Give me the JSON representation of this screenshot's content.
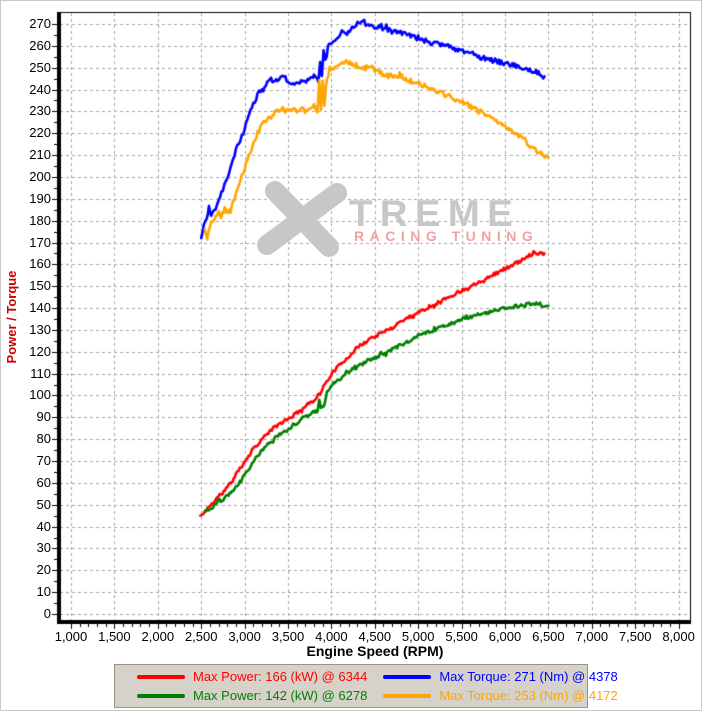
{
  "watermark": {
    "word_main": "TREME",
    "word_sub": "RACING TUNING",
    "main_color": "#c7c7c7",
    "sub_color": "#f2a2a2"
  },
  "axes": {
    "x": {
      "title": "Engine Speed (RPM)",
      "min": 1000,
      "max": 8000,
      "major_step": 500,
      "minor_step": 100,
      "tick_labels": [
        "1,000",
        "1,500",
        "2,000",
        "2,500",
        "3,000",
        "3,500",
        "4,000",
        "4,500",
        "5,000",
        "5,500",
        "6,000",
        "6,500",
        "7,000",
        "7,500",
        "8,000"
      ]
    },
    "y": {
      "title": "Power / Torque",
      "title_color": "#cc0000",
      "min": 0,
      "max": 270,
      "major_step": 10,
      "minor_step": 5,
      "tick_labels": [
        "0",
        "10",
        "20",
        "30",
        "40",
        "50",
        "60",
        "70",
        "80",
        "90",
        "100",
        "110",
        "120",
        "130",
        "140",
        "150",
        "160",
        "170",
        "180",
        "190",
        "200",
        "210",
        "220",
        "230",
        "240",
        "250",
        "260",
        "270"
      ]
    }
  },
  "chart_data": {
    "type": "line",
    "title": "",
    "xlabel": "Engine Speed (RPM)",
    "ylabel": "Power / Torque",
    "xlim": [
      1000,
      8000
    ],
    "ylim": [
      0,
      275
    ],
    "grid": true,
    "grid_color": "#a6a6a6",
    "legend_position": "bottom",
    "series": [
      {
        "name": "Max Power: 166 (kW) @ 6344",
        "color": "#ff0000",
        "unit": "kW",
        "max_value": 166,
        "max_rpm": 6344,
        "points": [
          [
            2490,
            45
          ],
          [
            2540,
            46
          ],
          [
            2560,
            48
          ],
          [
            2640,
            51
          ],
          [
            2700,
            54
          ],
          [
            2760,
            56
          ],
          [
            2800,
            58
          ],
          [
            2860,
            61
          ],
          [
            2900,
            64
          ],
          [
            2960,
            67
          ],
          [
            3000,
            70
          ],
          [
            3060,
            73
          ],
          [
            3100,
            76
          ],
          [
            3160,
            78
          ],
          [
            3200,
            80
          ],
          [
            3300,
            84
          ],
          [
            3400,
            87
          ],
          [
            3500,
            89
          ],
          [
            3600,
            92
          ],
          [
            3700,
            95
          ],
          [
            3800,
            98
          ],
          [
            3870,
            101
          ],
          [
            3910,
            104
          ],
          [
            3960,
            107
          ],
          [
            4000,
            110
          ],
          [
            4100,
            114
          ],
          [
            4200,
            118
          ],
          [
            4300,
            122
          ],
          [
            4378,
            124
          ],
          [
            4440,
            126
          ],
          [
            4500,
            127
          ],
          [
            4600,
            129
          ],
          [
            4700,
            131
          ],
          [
            4800,
            134
          ],
          [
            4900,
            136
          ],
          [
            5000,
            138
          ],
          [
            5100,
            140
          ],
          [
            5200,
            142
          ],
          [
            5300,
            144
          ],
          [
            5400,
            146
          ],
          [
            5500,
            148
          ],
          [
            5600,
            150
          ],
          [
            5700,
            152
          ],
          [
            5800,
            154
          ],
          [
            5900,
            156
          ],
          [
            6000,
            158
          ],
          [
            6100,
            160
          ],
          [
            6200,
            162
          ],
          [
            6280,
            164
          ],
          [
            6344,
            166
          ],
          [
            6400,
            165
          ],
          [
            6455,
            165
          ]
        ]
      },
      {
        "name": "Max Torque: 271 (Nm) @ 4378",
        "color": "#0000ff",
        "unit": "Nm",
        "max_value": 271,
        "max_rpm": 4378,
        "points": [
          [
            2500,
            172
          ],
          [
            2530,
            178
          ],
          [
            2560,
            180
          ],
          [
            2590,
            187
          ],
          [
            2615,
            182
          ],
          [
            2650,
            184
          ],
          [
            2700,
            190
          ],
          [
            2750,
            194
          ],
          [
            2800,
            199
          ],
          [
            2850,
            206
          ],
          [
            2900,
            212
          ],
          [
            2950,
            217
          ],
          [
            3000,
            222
          ],
          [
            3050,
            228
          ],
          [
            3100,
            233
          ],
          [
            3150,
            238
          ],
          [
            3200,
            240
          ],
          [
            3260,
            243
          ],
          [
            3320,
            245
          ],
          [
            3380,
            244
          ],
          [
            3440,
            246
          ],
          [
            3500,
            244
          ],
          [
            3560,
            242
          ],
          [
            3620,
            244
          ],
          [
            3680,
            243
          ],
          [
            3740,
            245
          ],
          [
            3800,
            246
          ],
          [
            3850,
            244
          ],
          [
            3870,
            252
          ],
          [
            3890,
            247
          ],
          [
            3910,
            257
          ],
          [
            3930,
            253
          ],
          [
            3960,
            259
          ],
          [
            4000,
            262
          ],
          [
            4060,
            264
          ],
          [
            4120,
            266
          ],
          [
            4180,
            267
          ],
          [
            4240,
            268
          ],
          [
            4300,
            270
          ],
          [
            4378,
            271
          ],
          [
            4440,
            270
          ],
          [
            4500,
            269
          ],
          [
            4560,
            268
          ],
          [
            4620,
            268
          ],
          [
            4680,
            267
          ],
          [
            4740,
            266
          ],
          [
            4800,
            266
          ],
          [
            4900,
            265
          ],
          [
            5000,
            264
          ],
          [
            5100,
            262
          ],
          [
            5200,
            261
          ],
          [
            5300,
            260
          ],
          [
            5400,
            259
          ],
          [
            5500,
            258
          ],
          [
            5600,
            257
          ],
          [
            5700,
            255
          ],
          [
            5800,
            254
          ],
          [
            5900,
            253
          ],
          [
            6000,
            252
          ],
          [
            6100,
            251
          ],
          [
            6200,
            250
          ],
          [
            6300,
            249
          ],
          [
            6400,
            247
          ],
          [
            6455,
            246
          ]
        ]
      },
      {
        "name": "Max Power: 142 (kW) @ 6278",
        "color": "#008000",
        "unit": "kW",
        "max_value": 142,
        "max_rpm": 6278,
        "points": [
          [
            2540,
            47
          ],
          [
            2600,
            48
          ],
          [
            2660,
            50
          ],
          [
            2700,
            52
          ],
          [
            2740,
            52
          ],
          [
            2800,
            54
          ],
          [
            2860,
            56
          ],
          [
            2900,
            58
          ],
          [
            2960,
            61
          ],
          [
            3000,
            64
          ],
          [
            3060,
            67
          ],
          [
            3100,
            70
          ],
          [
            3160,
            73
          ],
          [
            3200,
            75
          ],
          [
            3300,
            79
          ],
          [
            3400,
            82
          ],
          [
            3500,
            84
          ],
          [
            3600,
            87
          ],
          [
            3700,
            90
          ],
          [
            3800,
            93
          ],
          [
            3840,
            92
          ],
          [
            3860,
            99
          ],
          [
            3880,
            94
          ],
          [
            3920,
            96
          ],
          [
            3950,
            102
          ],
          [
            4010,
            105
          ],
          [
            4110,
            108
          ],
          [
            4172,
            110
          ],
          [
            4240,
            112
          ],
          [
            4300,
            113
          ],
          [
            4420,
            116
          ],
          [
            4500,
            117
          ],
          [
            4600,
            119
          ],
          [
            4700,
            121
          ],
          [
            4800,
            123
          ],
          [
            4900,
            125
          ],
          [
            5000,
            127
          ],
          [
            5100,
            129
          ],
          [
            5200,
            130
          ],
          [
            5300,
            132
          ],
          [
            5400,
            133
          ],
          [
            5500,
            135
          ],
          [
            5600,
            136
          ],
          [
            5700,
            137
          ],
          [
            5800,
            138
          ],
          [
            5900,
            139
          ],
          [
            6000,
            140
          ],
          [
            6100,
            141
          ],
          [
            6200,
            141
          ],
          [
            6278,
            142
          ],
          [
            6360,
            142
          ],
          [
            6420,
            141
          ],
          [
            6500,
            141
          ]
        ]
      },
      {
        "name": "Max Torque: 253 (Nm) @ 4172",
        "color": "#ffa500",
        "unit": "Nm",
        "max_value": 253,
        "max_rpm": 4172,
        "points": [
          [
            2540,
            176
          ],
          [
            2570,
            172
          ],
          [
            2600,
            178
          ],
          [
            2650,
            181
          ],
          [
            2700,
            184
          ],
          [
            2730,
            182
          ],
          [
            2770,
            185
          ],
          [
            2810,
            183
          ],
          [
            2850,
            187
          ],
          [
            2900,
            192
          ],
          [
            2950,
            198
          ],
          [
            3000,
            204
          ],
          [
            3050,
            210
          ],
          [
            3100,
            215
          ],
          [
            3150,
            220
          ],
          [
            3200,
            224
          ],
          [
            3260,
            227
          ],
          [
            3320,
            229
          ],
          [
            3380,
            230
          ],
          [
            3440,
            231
          ],
          [
            3500,
            230
          ],
          [
            3560,
            231
          ],
          [
            3620,
            230
          ],
          [
            3680,
            232
          ],
          [
            3740,
            231
          ],
          [
            3800,
            233
          ],
          [
            3840,
            229
          ],
          [
            3860,
            245
          ],
          [
            3880,
            231
          ],
          [
            3900,
            244
          ],
          [
            3920,
            233
          ],
          [
            3950,
            246
          ],
          [
            3980,
            248
          ],
          [
            4010,
            249
          ],
          [
            4060,
            250
          ],
          [
            4110,
            251
          ],
          [
            4172,
            253
          ],
          [
            4240,
            252
          ],
          [
            4300,
            251
          ],
          [
            4360,
            250
          ],
          [
            4420,
            250
          ],
          [
            4500,
            249
          ],
          [
            4600,
            247
          ],
          [
            4700,
            246
          ],
          [
            4800,
            246
          ],
          [
            4900,
            244
          ],
          [
            5000,
            243
          ],
          [
            5100,
            241
          ],
          [
            5200,
            239
          ],
          [
            5300,
            238
          ],
          [
            5400,
            236
          ],
          [
            5500,
            235
          ],
          [
            5600,
            232
          ],
          [
            5700,
            230
          ],
          [
            5800,
            228
          ],
          [
            5900,
            226
          ],
          [
            6000,
            224
          ],
          [
            6100,
            221
          ],
          [
            6200,
            218
          ],
          [
            6300,
            214
          ],
          [
            6400,
            211
          ],
          [
            6500,
            209
          ]
        ]
      }
    ]
  },
  "legend": {
    "order": [
      0,
      1,
      2,
      3
    ]
  }
}
